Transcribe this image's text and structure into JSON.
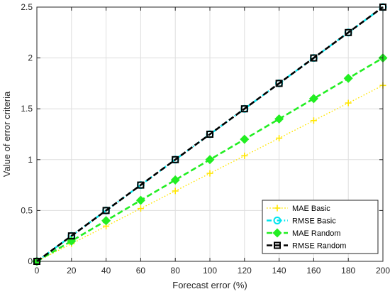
{
  "chart_data": {
    "type": "line",
    "title": "",
    "xlabel": "Forecast error (%)",
    "ylabel": "Value of error criteria",
    "x": [
      0,
      20,
      40,
      60,
      80,
      100,
      120,
      140,
      160,
      180,
      200
    ],
    "xlim": [
      0,
      200
    ],
    "ylim": [
      0,
      2.5
    ],
    "xticks": [
      "0",
      "20",
      "40",
      "60",
      "80",
      "100",
      "120",
      "140",
      "160",
      "180",
      "200"
    ],
    "yticks": [
      "0",
      "0.5",
      "1",
      "1.5",
      "2",
      "2.5"
    ],
    "grid": true,
    "legend_position": "bottom-right",
    "series": [
      {
        "name": "MAE Basic",
        "color": "#ffe600",
        "line_style": "dotted",
        "marker": "plus",
        "values": [
          0,
          0.173,
          0.346,
          0.519,
          0.692,
          0.865,
          1.038,
          1.211,
          1.384,
          1.557,
          1.73
        ]
      },
      {
        "name": "RMSE Basic",
        "color": "#00e5ee",
        "line_style": "dash-dot",
        "marker": "circle",
        "values": [
          0,
          0.25,
          0.5,
          0.75,
          1.0,
          1.25,
          1.5,
          1.75,
          2.0,
          2.25,
          2.5
        ]
      },
      {
        "name": "MAE Random",
        "color": "#22ee22",
        "line_style": "dashed",
        "marker": "diamond",
        "values": [
          0,
          0.2,
          0.4,
          0.6,
          0.8,
          1.0,
          1.2,
          1.4,
          1.6,
          1.8,
          2.0
        ]
      },
      {
        "name": "RMSE Random",
        "color": "#000000",
        "line_style": "dashed",
        "marker": "square",
        "values": [
          0,
          0.25,
          0.5,
          0.75,
          1.0,
          1.25,
          1.5,
          1.75,
          2.0,
          2.25,
          2.5
        ]
      }
    ]
  }
}
